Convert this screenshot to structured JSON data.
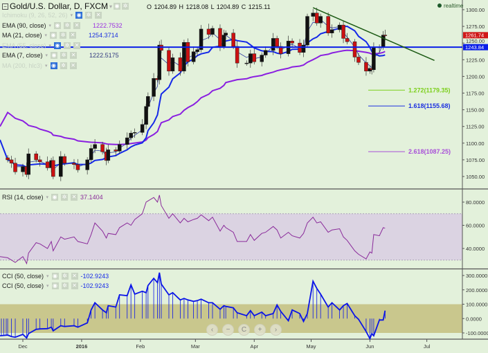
{
  "header": {
    "title": "Gold/U.S. Dollar, D, FXCM",
    "ohlc": "O 1204.89  H 1218.08  L 1204.89  C 1215.11",
    "realtime": "realtime"
  },
  "legend": [
    {
      "label": "Ichimoku (9, 26, 52, 26)",
      "value": "",
      "faded": true,
      "color": "#c8d3c4"
    },
    {
      "label": "EMA (90, close)",
      "value": "1222.7532",
      "faded": false,
      "color": "#9b30e0"
    },
    {
      "label": "MA (21, close)",
      "value": "1254.3714",
      "faded": false,
      "color": "#1a2fe0"
    },
    {
      "label": "EMA (55, close)",
      "value": "",
      "faded": true,
      "color": "#c8d3c4"
    },
    {
      "label": "EMA (7, close)",
      "value": "1222.5175",
      "faded": false,
      "color": "#333a80"
    },
    {
      "label": "MA (200, hlc3)",
      "value": "",
      "faded": true,
      "color": "#c8d3c4"
    }
  ],
  "rsi_legend": {
    "label": "RSI (14, close)",
    "value": "37.1404"
  },
  "cci_legend": [
    {
      "label": "CCI (50, close)",
      "value": "-102.9243"
    },
    {
      "label": "CCI (50, close)",
      "value": "-102.9243"
    }
  ],
  "nav_buttons": [
    "‹",
    "−",
    "C",
    "+",
    "›"
  ],
  "colors": {
    "up": "#111111",
    "down": "#cc1111",
    "ema90": "#8a1fe0",
    "ma21": "#1428e8",
    "ema7": "#2f3aa0",
    "trend": "#1c5a14",
    "hline": "#0a1ee8",
    "rsi": "#8a2a9a",
    "cci": "#0a14e8",
    "last_price_bg": "#d01818",
    "hline_bg": "#0a1ee8"
  },
  "chart_data": [
    {
      "type": "candlestick",
      "title": "Gold/U.S. Dollar, D, FXCM",
      "ylim": [
        1040,
        1310
      ],
      "yticks": [
        "1300.00",
        "1275.00",
        "1250.00",
        "1225.00",
        "1200.00",
        "1175.00",
        "1150.00",
        "1125.00",
        "1100.00",
        "1075.00",
        "1050.00"
      ],
      "xticks": [
        {
          "label": "Dec",
          "date": "2015-12-01"
        },
        {
          "label": "2016",
          "date": "2016-01-01"
        },
        {
          "label": "Feb",
          "date": "2016-02-01"
        },
        {
          "label": "Mar",
          "date": "2016-03-01"
        },
        {
          "label": "Apr",
          "date": "2016-04-01"
        },
        {
          "label": "May",
          "date": "2016-05-01"
        },
        {
          "label": "Jun",
          "date": "2016-06-01"
        },
        {
          "label": "Jul",
          "date": "2016-07-01"
        }
      ],
      "dates": [
        "2015-11-23",
        "2015-11-25",
        "2015-11-27",
        "2015-12-01",
        "2015-12-03",
        "2015-12-04",
        "2015-12-08",
        "2015-12-10",
        "2015-12-14",
        "2015-12-16",
        "2015-12-17",
        "2015-12-21",
        "2015-12-23",
        "2015-12-28",
        "2015-12-30",
        "2016-01-04",
        "2016-01-06",
        "2016-01-08",
        "2016-01-12",
        "2016-01-14",
        "2016-01-15",
        "2016-01-19",
        "2016-01-21",
        "2016-01-25",
        "2016-01-27",
        "2016-01-29",
        "2016-02-02",
        "2016-02-04",
        "2016-02-05",
        "2016-02-08",
        "2016-02-10",
        "2016-02-11",
        "2016-02-12",
        "2016-02-16",
        "2016-02-18",
        "2016-02-22",
        "2016-02-24",
        "2016-02-26",
        "2016-02-29",
        "2016-03-02",
        "2016-03-04",
        "2016-03-08",
        "2016-03-10",
        "2016-03-14",
        "2016-03-16",
        "2016-03-17",
        "2016-03-21",
        "2016-03-23",
        "2016-03-28",
        "2016-03-30",
        "2016-04-01",
        "2016-04-05",
        "2016-04-07",
        "2016-04-11",
        "2016-04-13",
        "2016-04-15",
        "2016-04-19",
        "2016-04-21",
        "2016-04-25",
        "2016-04-27",
        "2016-04-29",
        "2016-05-02",
        "2016-05-04",
        "2016-05-06",
        "2016-05-10",
        "2016-05-12",
        "2016-05-16",
        "2016-05-18",
        "2016-05-20",
        "2016-05-24",
        "2016-05-26",
        "2016-05-30",
        "2016-06-01",
        "2016-06-02",
        "2016-06-03",
        "2016-06-06",
        "2016-06-08",
        "2016-06-09"
      ],
      "close": [
        1075,
        1070,
        1057,
        1065,
        1053,
        1084,
        1075,
        1072,
        1063,
        1074,
        1050,
        1080,
        1070,
        1068,
        1060,
        1075,
        1092,
        1098,
        1087,
        1074,
        1090,
        1088,
        1098,
        1108,
        1115,
        1116,
        1128,
        1155,
        1170,
        1197,
        1195,
        1247,
        1239,
        1208,
        1228,
        1208,
        1251,
        1222,
        1237,
        1240,
        1271,
        1263,
        1272,
        1245,
        1262,
        1265,
        1245,
        1220,
        1220,
        1234,
        1222,
        1232,
        1239,
        1257,
        1245,
        1234,
        1253,
        1250,
        1236,
        1247,
        1290,
        1295,
        1280,
        1290,
        1265,
        1270,
        1277,
        1257,
        1252,
        1229,
        1221,
        1208,
        1212,
        1210,
        1243,
        1244,
        1262,
        1261
      ],
      "last_price": "1261.74",
      "horizontal_line": {
        "value": 1243.84,
        "label": "1243.84"
      },
      "trendline": [
        [
          "2016-05-02",
          1303
        ],
        [
          "2016-07-05",
          1224
        ]
      ],
      "fib_levels": [
        {
          "label": "1.272(1179.35)",
          "value": 1179.35,
          "color": "#7ccf1c"
        },
        {
          "label": "1.618(1155.68)",
          "value": 1155.68,
          "color": "#1a2fe0"
        },
        {
          "label": "2.618(1087.25)",
          "value": 1087.25,
          "color": "#a84fd8"
        }
      ]
    },
    {
      "type": "line",
      "title": "RSI (14, close)",
      "ylim": [
        25,
        90
      ],
      "yticks": [
        "80.0000",
        "60.0000",
        "40.0000"
      ],
      "bands": [
        30,
        70
      ],
      "values": [
        32,
        30,
        28,
        33,
        27,
        36,
        45,
        44,
        40,
        46,
        38,
        50,
        48,
        50,
        46,
        44,
        52,
        62,
        55,
        49,
        53,
        52,
        58,
        62,
        60,
        65,
        70,
        80,
        81,
        84,
        80,
        86,
        77,
        66,
        70,
        62,
        66,
        63,
        65,
        66,
        69,
        64,
        67,
        55,
        60,
        58,
        54,
        46,
        46,
        52,
        47,
        53,
        54,
        59,
        56,
        49,
        54,
        51,
        49,
        53,
        62,
        67,
        62,
        63,
        54,
        56,
        57,
        50,
        47,
        38,
        35,
        31,
        37,
        36,
        52,
        51,
        58,
        57.5
      ]
    },
    {
      "type": "line",
      "title": "CCI (50, close)",
      "ylim": [
        -150,
        330
      ],
      "yticks": [
        "300.0000",
        "200.0000",
        "100.0000",
        "0.0000",
        "-100.0000"
      ],
      "bands": [
        -100,
        100
      ],
      "values": [
        -115,
        -125,
        -130,
        -110,
        -135,
        -105,
        -75,
        -72,
        -70,
        -60,
        -85,
        -50,
        -55,
        -50,
        -60,
        -30,
        60,
        110,
        60,
        40,
        90,
        80,
        165,
        160,
        235,
        170,
        190,
        180,
        230,
        280,
        250,
        320,
        240,
        165,
        180,
        130,
        140,
        130,
        120,
        125,
        135,
        110,
        110,
        65,
        90,
        85,
        75,
        40,
        20,
        55,
        20,
        45,
        20,
        35,
        95,
        50,
        -15,
        60,
        35,
        -20,
        35,
        260,
        210,
        170,
        80,
        110,
        60,
        90,
        105,
        20,
        -5,
        -90,
        -140,
        -105,
        -120,
        -10,
        -10,
        55
      ]
    }
  ]
}
